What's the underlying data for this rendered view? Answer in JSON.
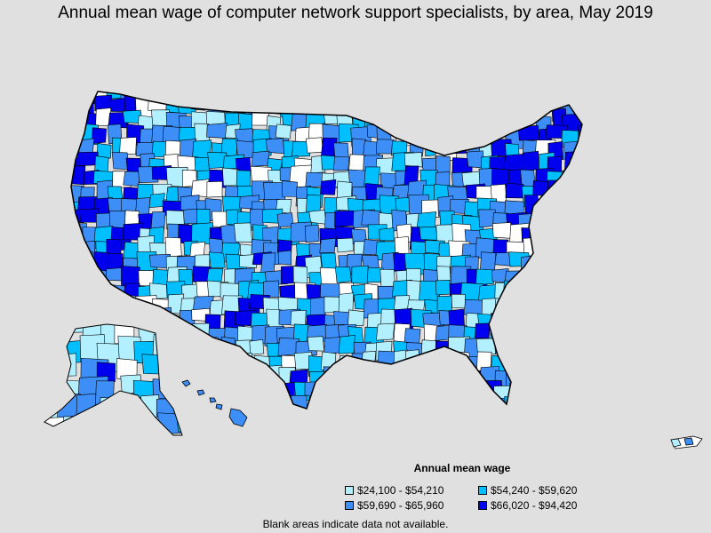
{
  "title": "Annual mean wage of computer network support specialists, by area, May 2019",
  "legend": {
    "title": "Annual mean wage",
    "items": [
      {
        "label": "$24,100 - $54,210",
        "color": "#b3f0ff"
      },
      {
        "label": "$54,240 - $59,620",
        "color": "#00bfff"
      },
      {
        "label": "$59,690 - $65,960",
        "color": "#3e8ef7"
      },
      {
        "label": "$66,020 - $94,420",
        "color": "#0000ee"
      }
    ]
  },
  "footnote": "Blank areas indicate data not available.",
  "colors": {
    "background": "#e0e0e0",
    "no_data": "#ffffff",
    "border": "#000000"
  }
}
